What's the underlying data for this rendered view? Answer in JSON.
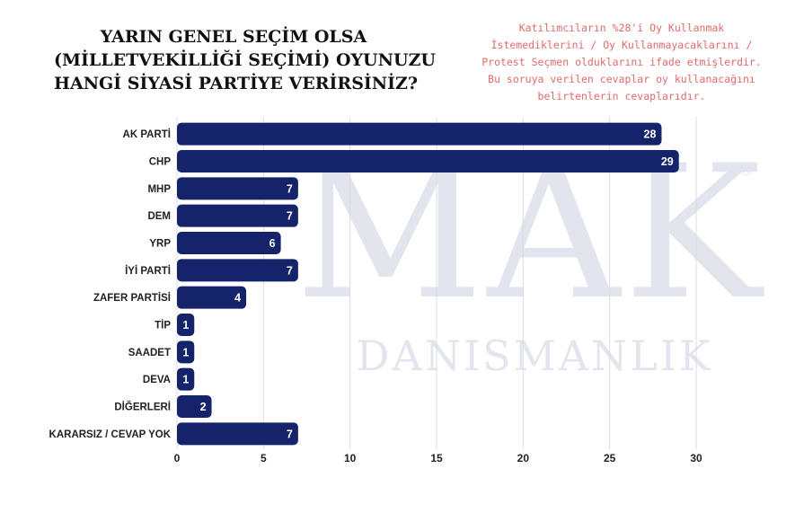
{
  "chart_data": {
    "type": "bar",
    "orientation": "horizontal",
    "title_lines": [
      "YARIN GENEL SEÇİM OLSA",
      "(MİLLETVEKİLLİĞİ SEÇİMİ) OYUNUZU",
      "HANGİ SİYASİ PARTİYE VERİRSİNİZ?"
    ],
    "categories": [
      "AK PARTİ",
      "CHP",
      "MHP",
      "DEM",
      "YRP",
      "İYİ PARTİ",
      "ZAFER PARTİSİ",
      "TİP",
      "SAADET",
      "DEVA",
      "DİĞERLERİ",
      "KARARSIZ / CEVAP YOK"
    ],
    "values": [
      28,
      29,
      7,
      7,
      6,
      7,
      4,
      1,
      1,
      1,
      2,
      7
    ],
    "xlim": [
      0,
      30
    ],
    "xticks": [
      0,
      5,
      10,
      15,
      20,
      25,
      30
    ],
    "grid": true,
    "data_labels": true,
    "bar_color": "#15236b",
    "label_color": "#ffffff"
  },
  "note_lines": [
    "Katılımcıların %28'i Oy Kullanmak",
    "İstemediklerini / Oy Kullanmayacaklarını /",
    "Protest Seçmen olduklarını ifade etmişlerdir.",
    "Bu soruya verilen cevaplar oy kullanacağını",
    "belirtenlerin cevaplarıdır."
  ],
  "note_color": "#e06a6a",
  "watermark": {
    "logo_text": "MAK",
    "sub_text": "DANISMANLIK",
    "registered": "®",
    "color": "#d9dce8"
  }
}
